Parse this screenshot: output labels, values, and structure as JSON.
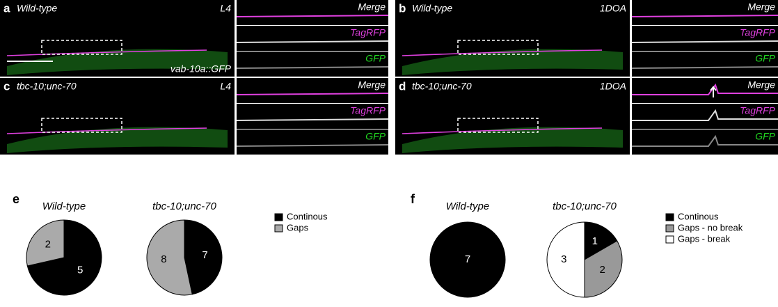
{
  "panels": [
    {
      "letter": "a",
      "strain": "Wild-type",
      "stage": "L4",
      "sublabels": [
        "Merge",
        "TagRFP",
        "GFP"
      ],
      "caption": "vab-10a::GFP"
    },
    {
      "letter": "b",
      "strain": "Wild-type",
      "stage": "1DOA",
      "sublabels": [
        "Merge",
        "TagRFP",
        "GFP"
      ]
    },
    {
      "letter": "c",
      "strain": "tbc-10;unc-70",
      "stage": "L4",
      "sublabels": [
        "Merge",
        "TagRFP",
        "GFP"
      ]
    },
    {
      "letter": "d",
      "strain": "tbc-10;unc-70",
      "stage": "1DOA",
      "sublabels": [
        "Merge",
        "TagRFP",
        "GFP"
      ]
    }
  ],
  "legends": [
    {
      "letter": "e",
      "labels": [
        "Continous",
        "Gaps"
      ],
      "colors": [
        "#000000",
        "#aaaaaa"
      ]
    },
    {
      "letter": "f",
      "labels": [
        "Continous",
        "Gaps - no break",
        "Gaps - break"
      ],
      "colors": [
        "#000000",
        "#999999",
        "#ffffff"
      ]
    }
  ],
  "chart_data": [
    {
      "type": "pie",
      "title": "Wild-type",
      "values": [
        5,
        2
      ],
      "colors": [
        "#000000",
        "#aaaaaa"
      ]
    },
    {
      "type": "pie",
      "title": "tbc-10;unc-70",
      "values": [
        7,
        8
      ],
      "colors": [
        "#000000",
        "#aaaaaa"
      ]
    },
    {
      "type": "pie",
      "title": "Wild-type",
      "values": [
        7
      ],
      "colors": [
        "#000000"
      ]
    },
    {
      "type": "pie",
      "title": "tbc-10;unc-70",
      "values": [
        1,
        2,
        3
      ],
      "colors": [
        "#000000",
        "#999999",
        "#ffffff"
      ]
    }
  ]
}
